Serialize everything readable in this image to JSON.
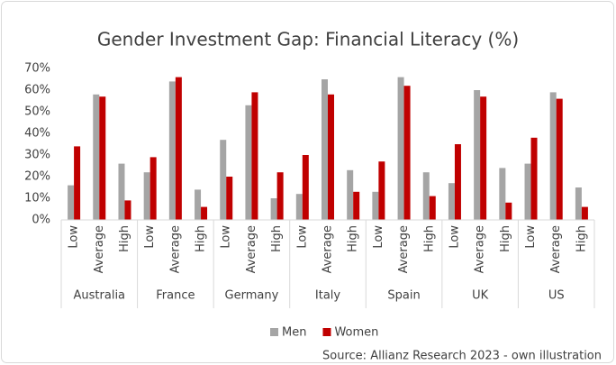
{
  "chart_data": {
    "type": "bar",
    "title": "Gender Investment Gap: Financial Literacy (%)",
    "groups": [
      "Australia",
      "France",
      "Germany",
      "Italy",
      "Spain",
      "UK",
      "US"
    ],
    "categories": [
      "Low",
      "Average",
      "High",
      "Low",
      "Average",
      "High",
      "Low",
      "Average",
      "High",
      "Low",
      "Average",
      "High",
      "Low",
      "Average",
      "High",
      "Low",
      "Average",
      "High",
      "Low",
      "Average",
      "High"
    ],
    "series": [
      {
        "name": "Men",
        "color": "#a5a5a5",
        "values": [
          16,
          58,
          26,
          22,
          64,
          14,
          37,
          53,
          10,
          12,
          65,
          23,
          13,
          66,
          22,
          17,
          60,
          24,
          26,
          59,
          15
        ]
      },
      {
        "name": "Women",
        "color": "#c00000",
        "values": [
          34,
          57,
          9,
          29,
          66,
          6,
          20,
          59,
          22,
          30,
          58,
          13,
          27,
          62,
          11,
          35,
          57,
          8,
          38,
          56,
          6
        ]
      }
    ],
    "ylim": [
      0,
      70
    ],
    "yticks": [
      {
        "value": 0,
        "label": "0%"
      },
      {
        "value": 10,
        "label": "10%"
      },
      {
        "value": 20,
        "label": "20%"
      },
      {
        "value": 30,
        "label": "30%"
      },
      {
        "value": 40,
        "label": "40%"
      },
      {
        "value": 50,
        "label": "50%"
      },
      {
        "value": 60,
        "label": "60%"
      },
      {
        "value": 70,
        "label": "70%"
      }
    ],
    "grid": false,
    "legend": "bottom",
    "source": "Source: Allianz Research 2023 - own illustration"
  }
}
